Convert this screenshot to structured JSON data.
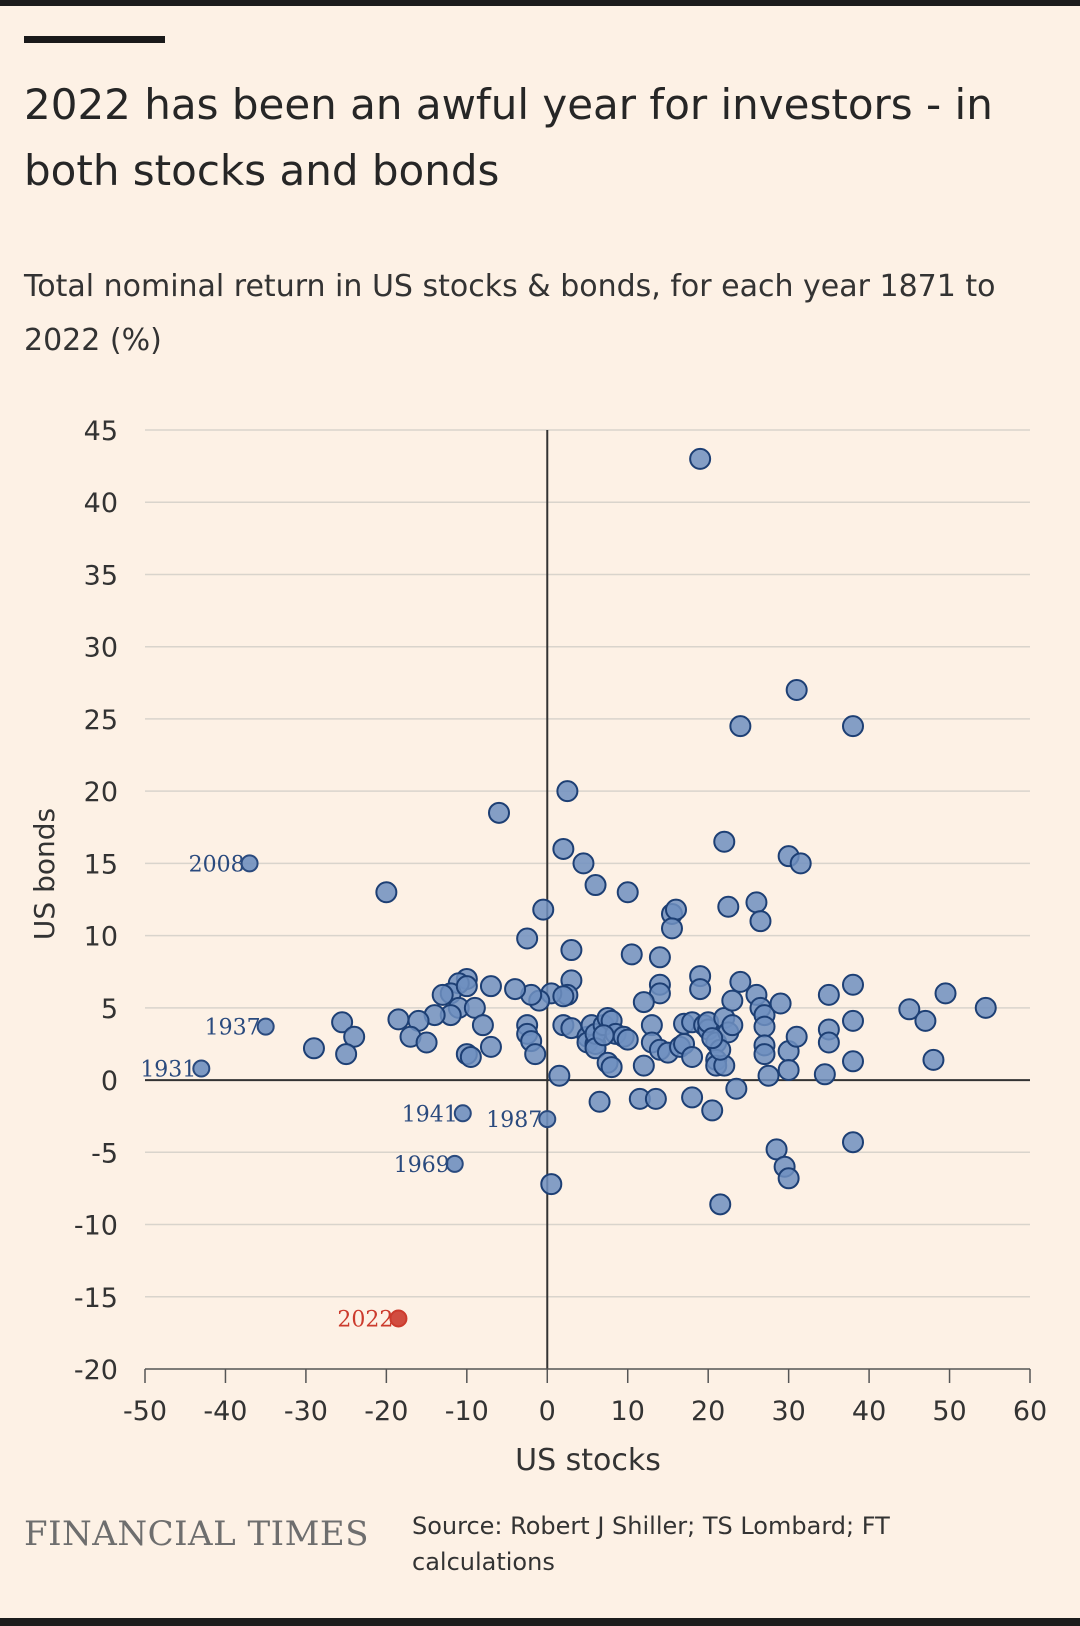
{
  "header": {
    "title": "2022 has been an awful year for investors - in both stocks and bonds",
    "subtitle": "Total nominal return in US stocks & bonds, for each year 1871 to 2022 (%)"
  },
  "footer": {
    "brand": "FINANCIAL TIMES",
    "source": "Source: Robert J Shiller; TS Lombard; FT calculations"
  },
  "colors": {
    "background": "#fdf1e5",
    "point_fill": "#6f8fbf",
    "point_stroke": "#1d3f74",
    "highlight": "#cc3b2d",
    "label": "#2a4a7e",
    "gridline": "#d9d4cc",
    "axis": "#333333"
  },
  "chart_data": {
    "type": "scatter",
    "xlabel": "US stocks",
    "ylabel": "US bonds",
    "xlim": [
      -50,
      60
    ],
    "ylim": [
      -20,
      45
    ],
    "xticks": [
      -50,
      -40,
      -30,
      -20,
      -10,
      0,
      10,
      20,
      30,
      40,
      50,
      60
    ],
    "yticks": [
      -20,
      -15,
      -10,
      -5,
      0,
      5,
      10,
      15,
      20,
      25,
      30,
      35,
      40,
      45
    ],
    "grid": "horizontal",
    "points": [
      [
        19,
        43
      ],
      [
        31,
        27
      ],
      [
        24,
        24.5
      ],
      [
        38,
        24.5
      ],
      [
        2.5,
        20
      ],
      [
        -6,
        18.5
      ],
      [
        2,
        16
      ],
      [
        4.5,
        15
      ],
      [
        22,
        16.5
      ],
      [
        30,
        15.5
      ],
      [
        31.5,
        15
      ],
      [
        6,
        13.5
      ],
      [
        10,
        13
      ],
      [
        -20,
        13
      ],
      [
        15.5,
        11.5
      ],
      [
        16,
        11.8
      ],
      [
        15.5,
        10.5
      ],
      [
        22.5,
        12
      ],
      [
        26,
        12.3
      ],
      [
        26.5,
        11
      ],
      [
        -0.5,
        11.8
      ],
      [
        -2.5,
        9.8
      ],
      [
        3,
        9
      ],
      [
        10.5,
        8.7
      ],
      [
        14,
        8.5
      ],
      [
        19,
        7.2
      ],
      [
        19,
        6.3
      ],
      [
        24,
        6.8
      ],
      [
        14,
        6.6
      ],
      [
        14,
        6
      ],
      [
        3,
        6.9
      ],
      [
        2.5,
        5.9
      ],
      [
        0.5,
        6
      ],
      [
        -1,
        5.5
      ],
      [
        -2,
        5.9
      ],
      [
        -4,
        6.3
      ],
      [
        -7,
        6.5
      ],
      [
        -10,
        7
      ],
      [
        -11,
        6.7
      ],
      [
        -12,
        6
      ],
      [
        -13,
        5.9
      ],
      [
        -11,
        5
      ],
      [
        -9,
        5
      ],
      [
        -10,
        6.5
      ],
      [
        -8,
        3.8
      ],
      [
        -12,
        4.5
      ],
      [
        -14,
        4.5
      ],
      [
        -16,
        4.1
      ],
      [
        -18.5,
        4.2
      ],
      [
        -17,
        3
      ],
      [
        -15,
        2.6
      ],
      [
        -25.5,
        4
      ],
      [
        -24,
        3
      ],
      [
        -25,
        1.8
      ],
      [
        -29,
        2.2
      ],
      [
        -7,
        2.3
      ],
      [
        -10,
        1.8
      ],
      [
        -9.5,
        1.6
      ],
      [
        -2.5,
        3.8
      ],
      [
        -2.5,
        3.2
      ],
      [
        -2,
        2.7
      ],
      [
        -1.5,
        1.8
      ],
      [
        2,
        5.8
      ],
      [
        2,
        3.8
      ],
      [
        3,
        3.6
      ],
      [
        5,
        3
      ],
      [
        5,
        2.6
      ],
      [
        5.5,
        3.8
      ],
      [
        6,
        2.5
      ],
      [
        6,
        3.2
      ],
      [
        7,
        3.8
      ],
      [
        7.5,
        4.3
      ],
      [
        8,
        4.1
      ],
      [
        8.5,
        3.2
      ],
      [
        6,
        2.2
      ],
      [
        7,
        3.1
      ],
      [
        7.5,
        1.2
      ],
      [
        8,
        0.9
      ],
      [
        9.5,
        3
      ],
      [
        10,
        2.8
      ],
      [
        12,
        5.4
      ],
      [
        13,
        3.8
      ],
      [
        13,
        2.6
      ],
      [
        12,
        1
      ],
      [
        14,
        2.1
      ],
      [
        15,
        1.9
      ],
      [
        16.5,
        2.3
      ],
      [
        17,
        3.9
      ],
      [
        17,
        2.5
      ],
      [
        18,
        1.6
      ],
      [
        18,
        4
      ],
      [
        19.5,
        3.8
      ],
      [
        20,
        3.5
      ],
      [
        20,
        4
      ],
      [
        21,
        2.6
      ],
      [
        21,
        1.4
      ],
      [
        21,
        1
      ],
      [
        22,
        1
      ],
      [
        22,
        4.3
      ],
      [
        22.5,
        3.3
      ],
      [
        23,
        3.8
      ],
      [
        21.5,
        2.1
      ],
      [
        20.5,
        2.9
      ],
      [
        23,
        5.5
      ],
      [
        26,
        5.9
      ],
      [
        26.5,
        5
      ],
      [
        27,
        4.5
      ],
      [
        29,
        5.3
      ],
      [
        27,
        3.7
      ],
      [
        27,
        2.4
      ],
      [
        27,
        1.8
      ],
      [
        27.5,
        0.3
      ],
      [
        30,
        2
      ],
      [
        30,
        0.7
      ],
      [
        31,
        3
      ],
      [
        35,
        5.9
      ],
      [
        35,
        3.5
      ],
      [
        35,
        2.6
      ],
      [
        34.5,
        0.4
      ],
      [
        38,
        6.6
      ],
      [
        38,
        4.1
      ],
      [
        38,
        1.3
      ],
      [
        45,
        4.9
      ],
      [
        47,
        4.1
      ],
      [
        48,
        1.4
      ],
      [
        49.5,
        6
      ],
      [
        54.5,
        5
      ],
      [
        6.5,
        -1.5
      ],
      [
        11.5,
        -1.3
      ],
      [
        13.5,
        -1.3
      ],
      [
        18,
        -1.2
      ],
      [
        20.5,
        -2.1
      ],
      [
        23.5,
        -0.6
      ],
      [
        28.5,
        -4.8
      ],
      [
        29.5,
        -6
      ],
      [
        30,
        -6.8
      ],
      [
        38,
        -4.3
      ],
      [
        21.5,
        -8.6
      ],
      [
        0.5,
        -7.2
      ],
      [
        1.5,
        0.3
      ]
    ],
    "labeled_points": [
      {
        "label": "2008",
        "x": -37,
        "y": 15
      },
      {
        "label": "1937",
        "x": -35,
        "y": 3.7
      },
      {
        "label": "1931",
        "x": -43,
        "y": 0.8
      },
      {
        "label": "1941",
        "x": -10.5,
        "y": -2.3
      },
      {
        "label": "1987",
        "x": 0,
        "y": -2.7
      },
      {
        "label": "1969",
        "x": -11.5,
        "y": -5.8
      },
      {
        "label": "2022",
        "x": -18.5,
        "y": -16.5,
        "highlight": true
      }
    ]
  }
}
